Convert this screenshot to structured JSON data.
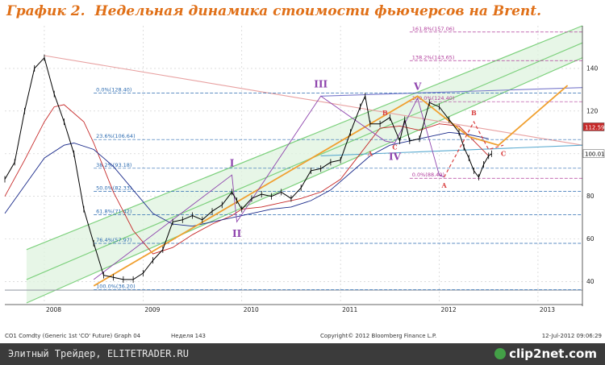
{
  "title": {
    "prefix": "График 2.",
    "text": "Недельная динамика стоимости фьючерсов на Brent."
  },
  "footer": {
    "caption": "Элитный Трейдер, ELITETRADER.RU",
    "logo": "clip2net.com"
  },
  "chart_data": {
    "type": "line",
    "ylim": [
      30,
      160
    ],
    "yticks": [
      40,
      60,
      80,
      100,
      120,
      140
    ],
    "xlim": [
      2007.6,
      2013.45
    ],
    "xticks": [
      {
        "x": 2008,
        "label": "2008"
      },
      {
        "x": 2009,
        "label": "2009"
      },
      {
        "x": 2010,
        "label": "2010"
      },
      {
        "x": 2011,
        "label": "2011"
      },
      {
        "x": 2012,
        "label": "2012"
      },
      {
        "x": 2013,
        "label": "2013"
      }
    ],
    "info_bar": {
      "left": "CO1 Comdty (Generic 1st 'CO' Future) Graph 04",
      "week": "Неделя 143",
      "copyright": "Copyright© 2012 Bloomberg Finance L.P.",
      "date": "12-Jul-2012 09:06:29"
    },
    "price_labels": [
      {
        "text": "112.59",
        "y": 112.59,
        "color": "#c62828"
      },
      {
        "text": "100.01",
        "y": 100.01,
        "color": "#ffffff"
      }
    ],
    "price": {
      "name": "Brent weekly close",
      "color": "#000000",
      "x": [
        2007.6,
        2007.7,
        2007.8,
        2007.9,
        2008.0,
        2008.1,
        2008.2,
        2008.3,
        2008.4,
        2008.5,
        2008.6,
        2008.7,
        2008.8,
        2008.9,
        2009.0,
        2009.1,
        2009.2,
        2009.3,
        2009.4,
        2009.5,
        2009.6,
        2009.7,
        2009.8,
        2009.9,
        2009.95,
        2010.0,
        2010.1,
        2010.2,
        2010.3,
        2010.4,
        2010.5,
        2010.6,
        2010.7,
        2010.8,
        2010.9,
        2011.0,
        2011.1,
        2011.2,
        2011.25,
        2011.3,
        2011.4,
        2011.5,
        2011.6,
        2011.65,
        2011.7,
        2011.8,
        2011.9,
        2012.0,
        2012.1,
        2012.2,
        2012.25,
        2012.3,
        2012.35,
        2012.4,
        2012.45,
        2012.5,
        2012.53
      ],
      "values": [
        88,
        96,
        120,
        140,
        145,
        128,
        115,
        100,
        74,
        58,
        43,
        42,
        41,
        41,
        44,
        50,
        55,
        68,
        69,
        71,
        69,
        73,
        76,
        82,
        78,
        74,
        79,
        81,
        80,
        82,
        79,
        84,
        92,
        93,
        96,
        97,
        110,
        122,
        127,
        114,
        114,
        117,
        106,
        116,
        106,
        107,
        124,
        122,
        116,
        110,
        103,
        98,
        92,
        89,
        95,
        99,
        100
      ]
    },
    "moving_averages": [
      {
        "name": "MA-fast",
        "color": "#c62828",
        "x": [
          2007.6,
          2007.8,
          2008.0,
          2008.1,
          2008.2,
          2008.4,
          2008.5,
          2008.7,
          2008.9,
          2009.1,
          2009.3,
          2009.5,
          2009.7,
          2009.9,
          2010.0,
          2010.2,
          2010.4,
          2010.6,
          2010.8,
          2011.0,
          2011.2,
          2011.4,
          2011.6,
          2011.8,
          2012.0,
          2012.2,
          2012.35,
          2012.5
        ],
        "values": [
          80,
          97,
          115,
          122,
          123,
          115,
          105,
          82,
          64,
          53,
          56,
          62,
          67,
          71,
          74,
          75,
          77,
          79,
          82,
          88,
          100,
          112,
          113,
          111,
          114,
          113,
          106,
          99
        ]
      },
      {
        "name": "MA-slow",
        "color": "#1a2a8a",
        "x": [
          2007.6,
          2007.8,
          2008.0,
          2008.2,
          2008.3,
          2008.5,
          2008.7,
          2008.9,
          2009.1,
          2009.3,
          2009.5,
          2009.7,
          2009.9,
          2010.1,
          2010.3,
          2010.5,
          2010.7,
          2010.9,
          2011.1,
          2011.3,
          2011.5,
          2011.7,
          2011.9,
          2012.1,
          2012.3,
          2012.5
        ],
        "values": [
          72,
          85,
          98,
          104,
          105,
          102,
          94,
          83,
          72,
          67,
          66,
          68,
          70,
          72,
          74,
          75,
          78,
          83,
          91,
          99,
          104,
          106,
          108,
          110,
          109,
          107
        ]
      }
    ],
    "channel": {
      "color": "#7ed17e",
      "fill": "#dff3df",
      "lines": [
        {
          "x": [
            2007.82,
            2013.45
          ],
          "values": [
            30,
            145
          ]
        },
        {
          "x": [
            2007.82,
            2013.45
          ],
          "values": [
            55,
            160
          ]
        },
        {
          "x": [
            2007.82,
            2013.45
          ],
          "values": [
            41,
            152
          ]
        }
      ]
    },
    "trendlines": [
      {
        "name": "descending",
        "color": "#e8a0a0",
        "x": [
          2008.0,
          2013.45
        ],
        "values": [
          146,
          104
        ]
      },
      {
        "name": "upper-flat",
        "color": "#7a7acc",
        "x": [
          2010.8,
          2013.45
        ],
        "values": [
          127,
          131
        ]
      },
      {
        "name": "lower-flat",
        "color": "#5aaad0",
        "x": [
          2010.8,
          2013.45
        ],
        "values": [
          99,
          104
        ]
      },
      {
        "name": "support",
        "color": "#9aa0aa",
        "x": [
          2007.6,
          2013.45
        ],
        "values": [
          36,
          36
        ]
      }
    ],
    "orange_path": {
      "color": "#f0a030",
      "x": [
        2008.5,
        2011.78,
        2012.3,
        2012.6,
        2013.3
      ],
      "values": [
        38,
        127,
        108,
        104,
        132
      ]
    },
    "purple_zigzag": {
      "color": "#8e44ad",
      "x": [
        2008.5,
        2009.9,
        2009.95,
        2010.8,
        2011.45,
        2011.55,
        2011.78,
        2012.0,
        2012.05
      ],
      "values": [
        41,
        90,
        68,
        127,
        106,
        105,
        126,
        90,
        89
      ]
    },
    "projection": {
      "color": "#d94040",
      "x": [
        2012.05,
        2012.35,
        2012.5,
        2012.65
      ],
      "values": [
        89,
        115,
        102,
        104
      ]
    },
    "fib_levels": [
      {
        "label": "0.0%(128.40)",
        "y": 128.4,
        "x0": 2008.5,
        "color": "#2a6ab0"
      },
      {
        "label": "23.6%(106.64)",
        "y": 106.64,
        "x0": 2008.5,
        "color": "#2a6ab0"
      },
      {
        "label": "38.2%(93.18)",
        "y": 93.18,
        "x0": 2008.5,
        "color": "#2a6ab0"
      },
      {
        "label": "50.0%(82.33)",
        "y": 82.33,
        "x0": 2008.5,
        "color": "#2a6ab0"
      },
      {
        "label": "61.8%(71.42)",
        "y": 71.42,
        "x0": 2008.5,
        "color": "#2a6ab0"
      },
      {
        "label": "76.4%(57.97)",
        "y": 57.97,
        "x0": 2008.5,
        "color": "#2a6ab0"
      },
      {
        "label": "100.0%(36.20)",
        "y": 36.2,
        "x0": 2008.5,
        "color": "#2a6ab0"
      },
      {
        "label": "161.8%(157.06)",
        "y": 157.06,
        "x0": 2011.7,
        "color": "#b03a9a"
      },
      {
        "label": "138.2%(143.65)",
        "y": 143.65,
        "x0": 2011.7,
        "color": "#b03a9a"
      },
      {
        "label": "100.0%(124.40)",
        "y": 124.4,
        "x0": 2011.7,
        "color": "#b03a9a"
      },
      {
        "label": "0.0%(88.49)",
        "y": 88.49,
        "x0": 2011.7,
        "color": "#b03a9a"
      }
    ],
    "wave_labels": [
      {
        "text": "I",
        "x": 2009.9,
        "y": 94,
        "color": "#8e44ad"
      },
      {
        "text": "II",
        "x": 2009.95,
        "y": 61,
        "color": "#8e44ad"
      },
      {
        "text": "III",
        "x": 2010.8,
        "y": 131,
        "color": "#8e44ad"
      },
      {
        "text": "IV",
        "x": 2011.55,
        "y": 97,
        "color": "#8e44ad"
      },
      {
        "text": "V",
        "x": 2011.78,
        "y": 130,
        "color": "#8e44ad"
      },
      {
        "text": "A",
        "x": 2011.3,
        "y": 99,
        "color": "#d94040"
      },
      {
        "text": "B",
        "x": 2011.45,
        "y": 118,
        "color": "#d94040"
      },
      {
        "text": "C",
        "x": 2011.55,
        "y": 102,
        "color": "#d94040"
      },
      {
        "text": "A",
        "x": 2012.05,
        "y": 84,
        "color": "#d94040"
      },
      {
        "text": "B",
        "x": 2012.35,
        "y": 118,
        "color": "#d94040"
      },
      {
        "text": "C",
        "x": 2012.65,
        "y": 99,
        "color": "#d94040"
      }
    ]
  }
}
